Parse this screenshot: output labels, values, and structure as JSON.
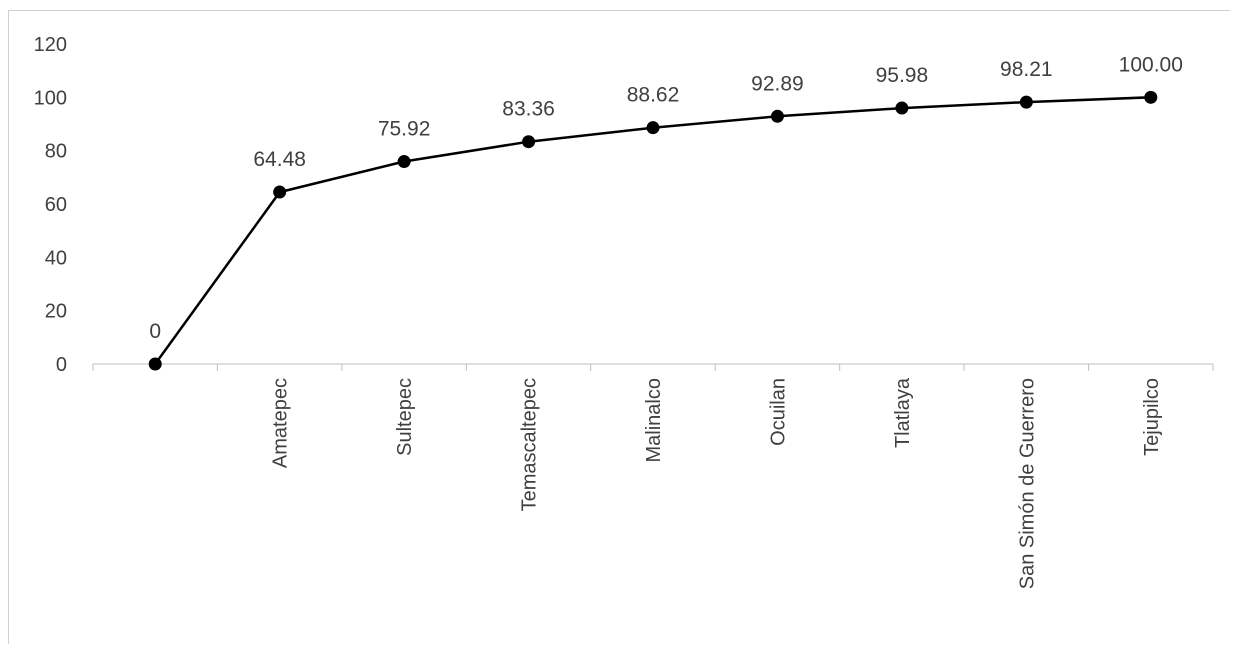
{
  "chart_data": {
    "type": "line",
    "title": "",
    "xlabel": "",
    "ylabel": "",
    "categories": [
      "",
      "Amatepec",
      "Sultepec",
      "Temascaltepec",
      "Malinalco",
      "Ocuilan",
      "Tlatlaya",
      "San Simón de Guerrero",
      "Tejupilco"
    ],
    "series": [
      {
        "values": [
          0,
          64.48,
          75.92,
          83.36,
          88.62,
          92.89,
          95.98,
          98.21,
          100.0
        ],
        "data_labels": [
          "0",
          "64.48",
          "75.92",
          "83.36",
          "88.62",
          "92.89",
          "95.98",
          "98.21",
          "100.00"
        ]
      }
    ],
    "ylim": [
      0,
      120
    ],
    "yticks": [
      0,
      20,
      40,
      60,
      80,
      100,
      120
    ],
    "grid": false,
    "legend": "none",
    "line_color": "#000000",
    "marker_color": "#000000",
    "axis_color": "#bfbfbf",
    "text_color": "#404040"
  }
}
